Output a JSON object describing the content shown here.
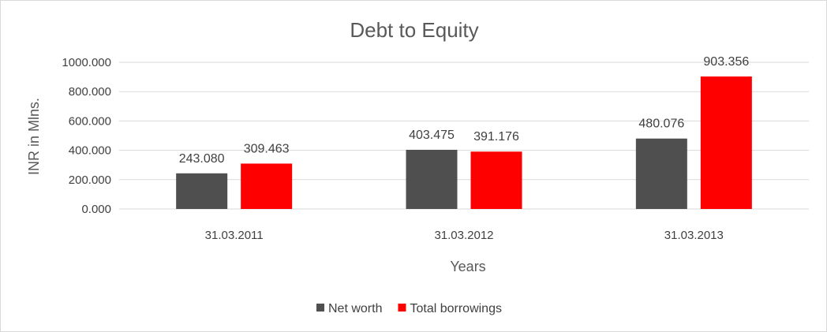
{
  "chart_data": {
    "type": "bar",
    "title": "Debt to Equity",
    "xlabel": "Years",
    "ylabel": "INR in Mlns.",
    "categories": [
      "31.03.2011",
      "31.03.2012",
      "31.03.2013"
    ],
    "series": [
      {
        "name": "Net worth",
        "color": "#4f4f4f",
        "values": [
          243.08,
          403.475,
          480.076
        ],
        "labels": [
          "243.080",
          "403.475",
          "480.076"
        ]
      },
      {
        "name": "Total borrowings",
        "color": "#ff0000",
        "values": [
          309.463,
          391.176,
          903.356
        ],
        "labels": [
          "309.463",
          "391.176",
          "903.356"
        ]
      }
    ],
    "ylim": [
      0,
      1000
    ],
    "yticks": [
      "0.000",
      "200.000",
      "400.000",
      "600.000",
      "800.000",
      "1000.000"
    ],
    "grid": true,
    "legend": "bottom"
  }
}
